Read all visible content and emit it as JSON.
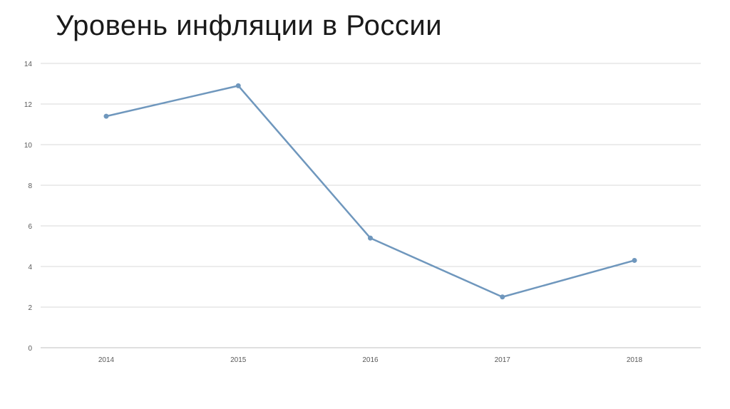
{
  "slide": {
    "title": "Уровень инфляции в России"
  },
  "colors": {
    "line": "#6f97bd",
    "gridline": "#d9d9d9",
    "axis": "#bfbfbf",
    "tick_text": "#595959",
    "title_text": "#1a1a1a"
  },
  "chart_data": {
    "type": "line",
    "title": "",
    "xlabel": "",
    "ylabel": "",
    "categories": [
      "2014",
      "2015",
      "2016",
      "2017",
      "2018"
    ],
    "series": [
      {
        "values": [
          11.4,
          12.9,
          5.4,
          2.5,
          4.3
        ]
      }
    ],
    "ylim": [
      0,
      14
    ],
    "yticks": [
      0,
      2,
      4,
      6,
      8,
      10,
      12,
      14
    ],
    "grid": true,
    "markers": true,
    "legend": "none"
  }
}
